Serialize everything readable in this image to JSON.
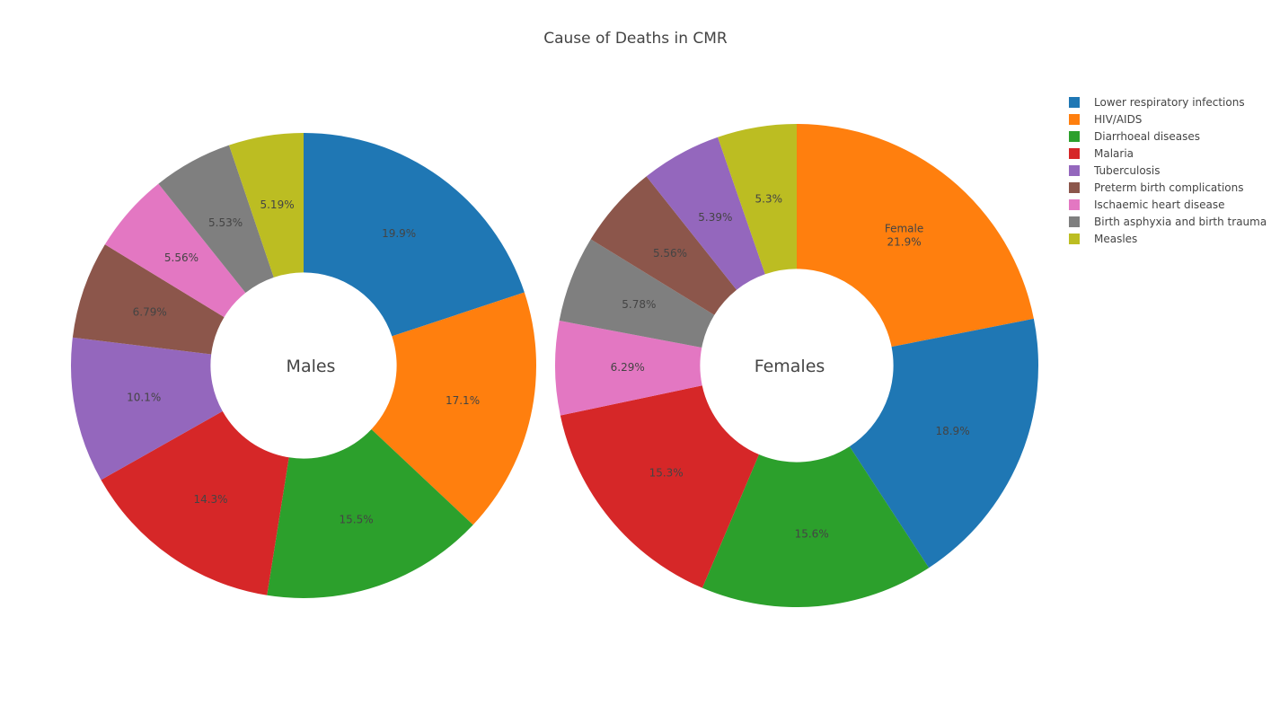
{
  "chart_data": {
    "type": "pie",
    "title": "Cause of Deaths in CMR",
    "hole": true,
    "legend_position": "top-right",
    "categories": [
      "Lower respiratory infections",
      "HIV/AIDS",
      "Diarrhoeal diseases",
      "Malaria",
      "Tuberculosis",
      "Preterm birth complications",
      "Ischaemic heart disease",
      "Birth asphyxia and birth trauma",
      "Measles"
    ],
    "colors": [
      "#1f77b4",
      "#ff7f0e",
      "#2ca02c",
      "#d62728",
      "#9467bd",
      "#8c564b",
      "#e377c2",
      "#7f7f7f",
      "#bcbd22"
    ],
    "charts": [
      {
        "name": "Males",
        "center_label": "Males",
        "slices": [
          {
            "label": "Lower respiratory infections",
            "value": 19.9,
            "text": "19.9%"
          },
          {
            "label": "HIV/AIDS",
            "value": 17.1,
            "text": "17.1%"
          },
          {
            "label": "Diarrhoeal diseases",
            "value": 15.5,
            "text": "15.5%"
          },
          {
            "label": "Malaria",
            "value": 14.3,
            "text": "14.3%"
          },
          {
            "label": "Tuberculosis",
            "value": 10.1,
            "text": "10.1%"
          },
          {
            "label": "Preterm birth complications",
            "value": 6.79,
            "text": "6.79%"
          },
          {
            "label": "Ischaemic heart disease",
            "value": 5.56,
            "text": "5.56%"
          },
          {
            "label": "Birth asphyxia and birth trauma",
            "value": 5.53,
            "text": "5.53%"
          },
          {
            "label": "Measles",
            "value": 5.19,
            "text": "5.19%"
          }
        ]
      },
      {
        "name": "Females",
        "center_label": "Females",
        "slices": [
          {
            "label": "HIV/AIDS",
            "value": 21.9,
            "text": "21.9%",
            "hover_label": "Female"
          },
          {
            "label": "Lower respiratory infections",
            "value": 18.9,
            "text": "18.9%"
          },
          {
            "label": "Diarrhoeal diseases",
            "value": 15.6,
            "text": "15.6%"
          },
          {
            "label": "Malaria",
            "value": 15.3,
            "text": "15.3%"
          },
          {
            "label": "Ischaemic heart disease",
            "value": 6.29,
            "text": "6.29%"
          },
          {
            "label": "Birth asphyxia and birth trauma",
            "value": 5.78,
            "text": "5.78%"
          },
          {
            "label": "Preterm birth complications",
            "value": 5.56,
            "text": "5.56%"
          },
          {
            "label": "Tuberculosis",
            "value": 5.39,
            "text": "5.39%"
          },
          {
            "label": "Measles",
            "value": 5.3,
            "text": "5.3%"
          }
        ]
      }
    ]
  }
}
